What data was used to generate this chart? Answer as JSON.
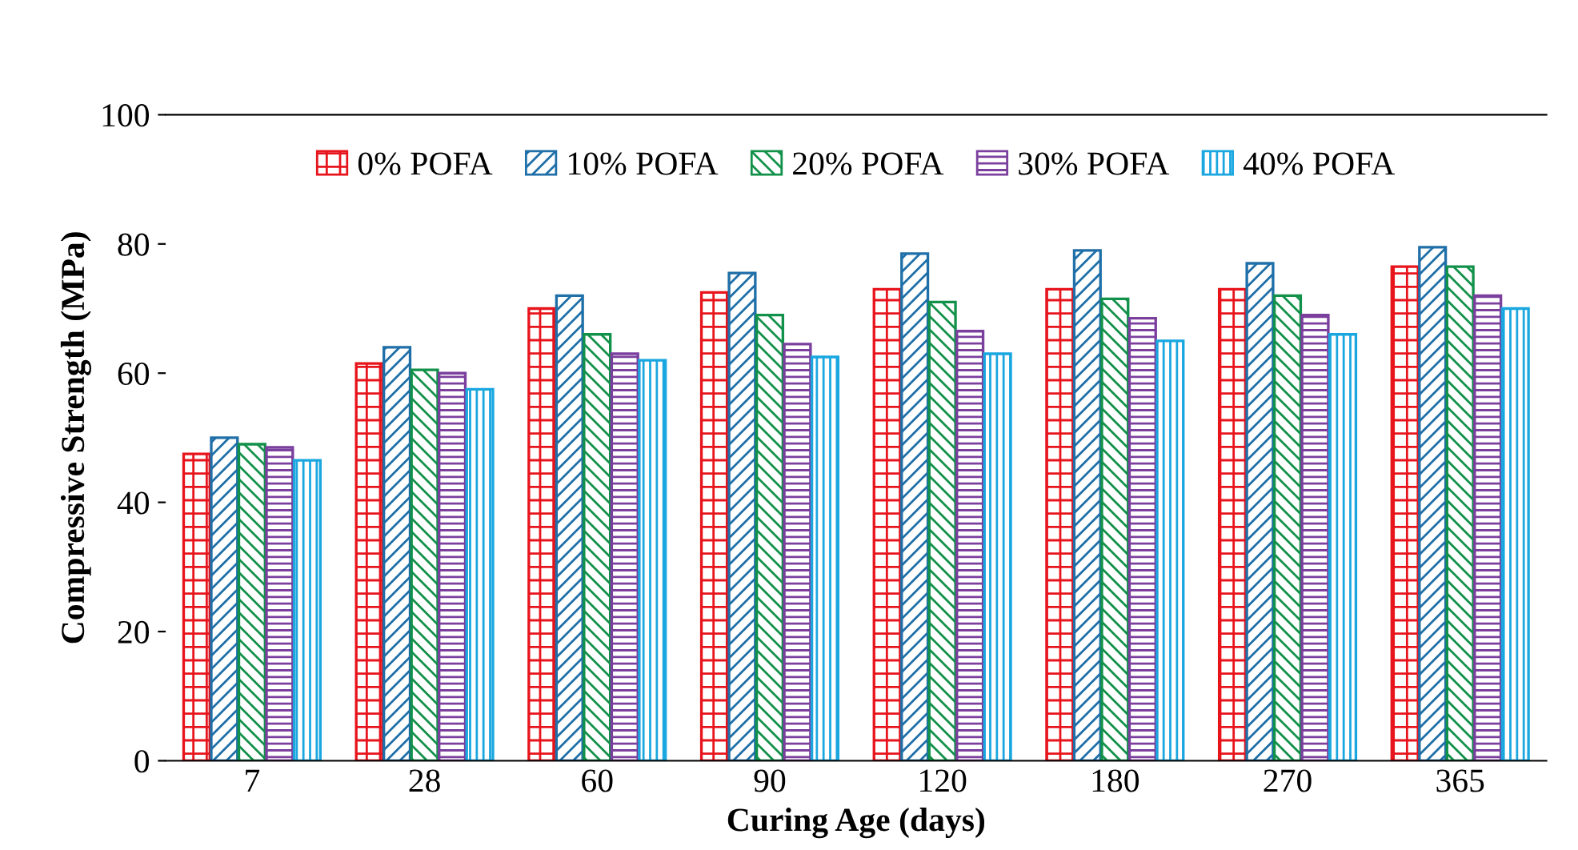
{
  "chart_data": {
    "type": "bar",
    "xlabel": "Curing Age (days)",
    "ylabel": "Compressive Strength (MPa)",
    "categories": [
      "7",
      "28",
      "60",
      "90",
      "120",
      "180",
      "270",
      "365"
    ],
    "series": [
      {
        "name": "0% POFA",
        "color": "#e8141c",
        "values": [
          47.5,
          61.5,
          70,
          72.5,
          73,
          73,
          73,
          76.5
        ]
      },
      {
        "name": "10% POFA",
        "color": "#1f6fa8",
        "values": [
          50,
          64,
          72,
          75.5,
          78.5,
          79,
          77,
          79.5
        ]
      },
      {
        "name": "20% POFA",
        "color": "#12914a",
        "values": [
          49,
          60.5,
          66,
          69,
          71,
          71.5,
          72,
          76.5
        ]
      },
      {
        "name": "30% POFA",
        "color": "#7b3f9e",
        "values": [
          48.5,
          60,
          63,
          64.5,
          66.5,
          68.5,
          69,
          72
        ]
      },
      {
        "name": "40% POFA",
        "color": "#1aa7e0",
        "values": [
          46.5,
          57.5,
          62,
          62.5,
          63,
          65,
          66,
          70
        ]
      }
    ],
    "ylim": [
      0,
      100
    ],
    "yticks": [
      0,
      20,
      40,
      60,
      80,
      100
    ],
    "grid": false,
    "legend": "top"
  }
}
